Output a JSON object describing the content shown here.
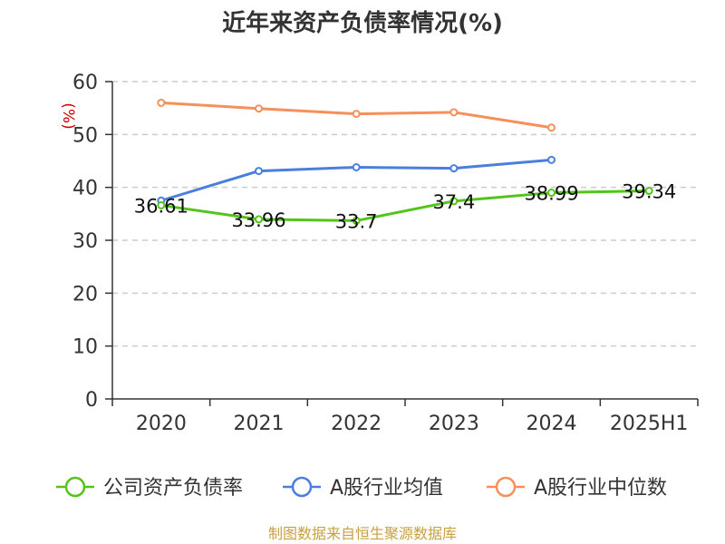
{
  "chart_data": {
    "type": "line",
    "title": "近年来资产负债率情况(%)",
    "ylabel": "(%)",
    "categories": [
      "2020",
      "2021",
      "2022",
      "2023",
      "2024",
      "2025H1"
    ],
    "ylim": [
      0,
      60
    ],
    "yticks": [
      0,
      10,
      20,
      30,
      40,
      50,
      60
    ],
    "grid": true,
    "legend_position": "bottom",
    "series": [
      {
        "name": "公司资产负债率",
        "color": "#52c41a",
        "values": [
          36.61,
          33.96,
          33.7,
          37.4,
          38.99,
          39.34
        ],
        "labels": [
          "36.61",
          "33.96",
          "33.7",
          "37.4",
          "38.99",
          "39.34"
        ]
      },
      {
        "name": "A股行业均值",
        "color": "#4a7fdc",
        "values": [
          37.5,
          43.1,
          43.8,
          43.6,
          45.2,
          null
        ]
      },
      {
        "name": "A股行业中位数",
        "color": "#f5905a",
        "values": [
          56.0,
          54.9,
          53.9,
          54.2,
          51.3,
          null
        ]
      }
    ]
  },
  "source": "制图数据来自恒生聚源数据库"
}
